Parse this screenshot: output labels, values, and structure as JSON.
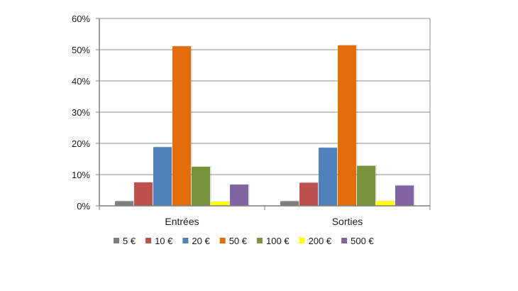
{
  "chart_data": {
    "type": "bar",
    "title": "",
    "xlabel": "",
    "ylabel": "",
    "ylim": [
      0,
      0.6
    ],
    "y_ticks": [
      "0%",
      "10%",
      "20%",
      "30%",
      "40%",
      "50%",
      "60%"
    ],
    "y_tick_values": [
      0,
      0.1,
      0.2,
      0.3,
      0.4,
      0.5,
      0.6
    ],
    "grid": true,
    "legend_position": "bottom",
    "categories": [
      "Entrées",
      "Sorties"
    ],
    "series": [
      {
        "name": "5 €",
        "color": "#7f7f7f",
        "values": [
          0.015,
          0.015
        ]
      },
      {
        "name": "10 €",
        "color": "#c0504d",
        "values": [
          0.075,
          0.074
        ]
      },
      {
        "name": "20 €",
        "color": "#4f81bd",
        "values": [
          0.188,
          0.186
        ]
      },
      {
        "name": "50 €",
        "color": "#e46c0a",
        "values": [
          0.511,
          0.514
        ]
      },
      {
        "name": "100 €",
        "color": "#77933c",
        "values": [
          0.125,
          0.128
        ]
      },
      {
        "name": "200 €",
        "color": "#ffff00",
        "values": [
          0.013,
          0.015
        ]
      },
      {
        "name": "500 €",
        "color": "#8064a2",
        "values": [
          0.068,
          0.065
        ]
      }
    ]
  }
}
